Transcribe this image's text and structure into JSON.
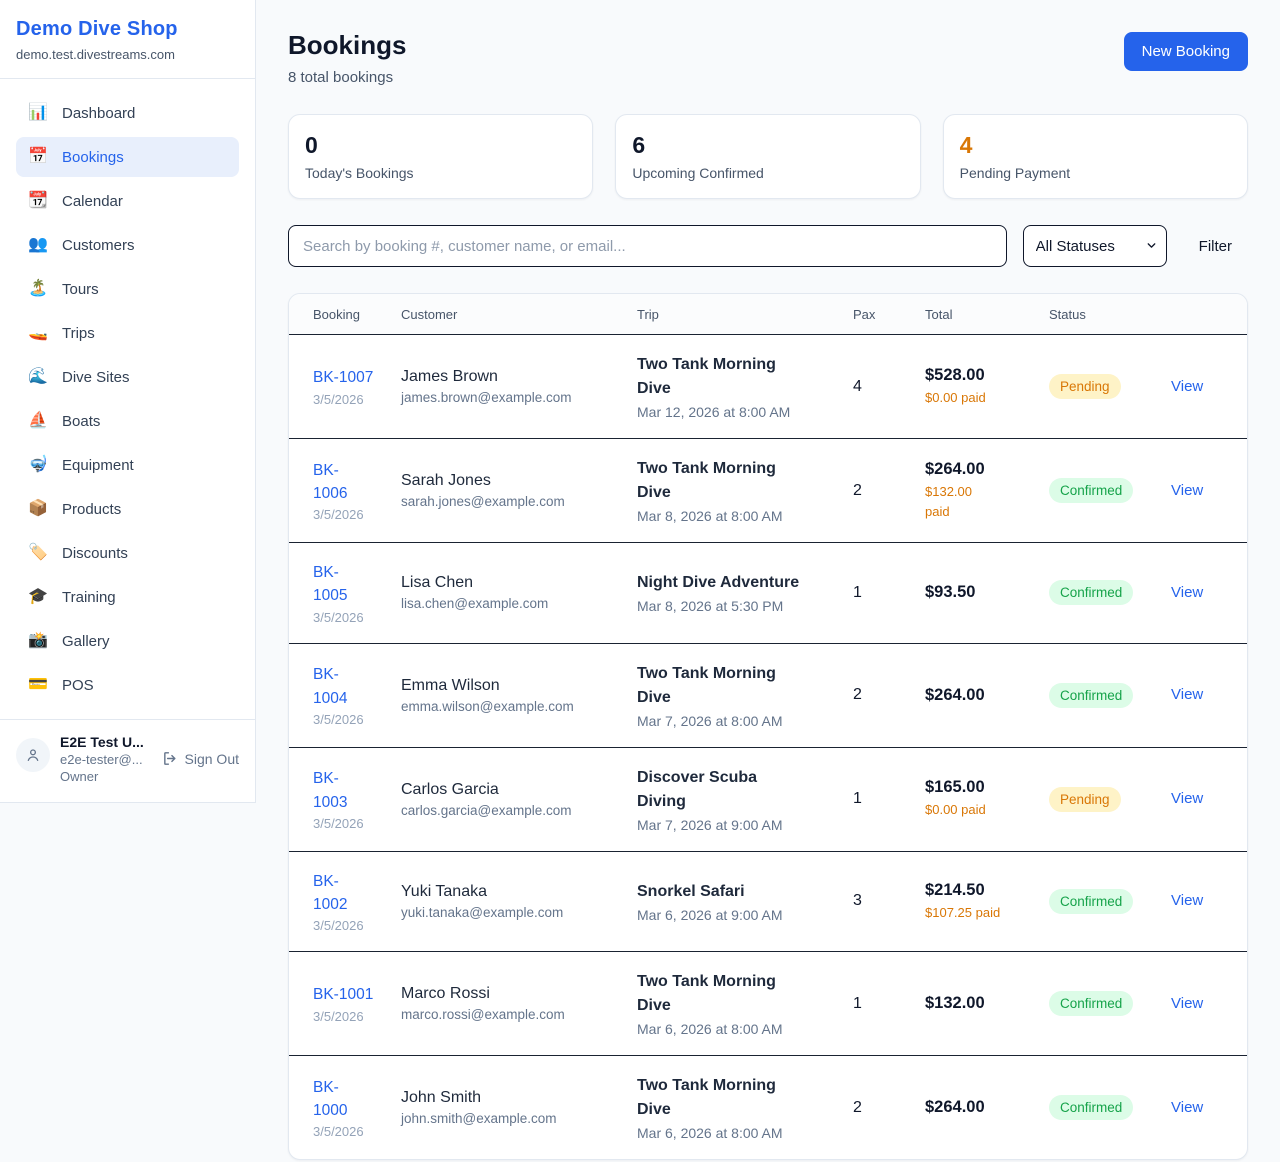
{
  "colors": {
    "accent_blue": "#2563eb",
    "pending_text": "#d97706",
    "pending_bg": "#fef3c7",
    "confirmed_text": "#16a34a",
    "confirmed_bg": "#dcfce7",
    "dark_text": "#0f172a"
  },
  "sidebar": {
    "brand": "Demo Dive Shop",
    "domain": "demo.test.divestreams.com",
    "items": [
      {
        "label": "Dashboard",
        "icon_name": "bar-chart-icon",
        "glyph": "📊",
        "active": false
      },
      {
        "label": "Bookings",
        "icon_name": "calendar-date-icon",
        "glyph": "📅",
        "active": true
      },
      {
        "label": "Calendar",
        "icon_name": "tear-calendar-icon",
        "glyph": "📆",
        "active": false
      },
      {
        "label": "Customers",
        "icon_name": "people-icon",
        "glyph": "👥",
        "active": false
      },
      {
        "label": "Tours",
        "icon_name": "island-icon",
        "glyph": "🏝️",
        "active": false
      },
      {
        "label": "Trips",
        "icon_name": "speedboat-icon",
        "glyph": "🚤",
        "active": false
      },
      {
        "label": "Dive Sites",
        "icon_name": "wave-icon",
        "glyph": "🌊",
        "active": false
      },
      {
        "label": "Boats",
        "icon_name": "sailboat-icon",
        "glyph": "⛵",
        "active": false
      },
      {
        "label": "Equipment",
        "icon_name": "diving-mask-icon",
        "glyph": "🤿",
        "active": false
      },
      {
        "label": "Products",
        "icon_name": "package-icon",
        "glyph": "📦",
        "active": false
      },
      {
        "label": "Discounts",
        "icon_name": "label-tag-icon",
        "glyph": "🏷️",
        "active": false
      },
      {
        "label": "Training",
        "icon_name": "graduation-cap-icon",
        "glyph": "🎓",
        "active": false
      },
      {
        "label": "Gallery",
        "icon_name": "camera-flash-icon",
        "glyph": "📸",
        "active": false
      },
      {
        "label": "POS",
        "icon_name": "credit-card-icon",
        "glyph": "💳",
        "active": false
      }
    ],
    "user": {
      "name": "E2E Test U...",
      "email": "e2e-tester@...",
      "role": "Owner",
      "signout_label": "Sign Out"
    }
  },
  "header": {
    "title": "Bookings",
    "subtitle": "8 total bookings",
    "new_booking_label": "New Booking"
  },
  "stats": [
    {
      "value": "0",
      "label": "Today's Bookings",
      "value_color": "#0f172a"
    },
    {
      "value": "6",
      "label": "Upcoming Confirmed",
      "value_color": "#0f172a"
    },
    {
      "value": "4",
      "label": "Pending Payment",
      "value_color": "#d97706"
    }
  ],
  "filters": {
    "search_placeholder": "Search by booking #, customer name, or email...",
    "status_selected": "All Statuses",
    "filter_label": "Filter"
  },
  "table": {
    "columns": [
      "Booking",
      "Customer",
      "Trip",
      "Pax",
      "Total",
      "Status"
    ],
    "view_label": "View",
    "rows": [
      {
        "id": "BK-1007",
        "date": "3/5/2026",
        "customer": "James Brown",
        "email": "james.brown@example.com",
        "trip": "Two Tank Morning\nDive",
        "trip_datetime": "Mar 12, 2026 at 8:00 AM",
        "pax": "4",
        "total": "$528.00",
        "paid": "$0.00 paid",
        "status": "Pending"
      },
      {
        "id": "BK-\n1006",
        "date": "3/5/2026",
        "customer": "Sarah Jones",
        "email": "sarah.jones@example.com",
        "trip": "Two Tank Morning\nDive",
        "trip_datetime": "Mar 8, 2026 at 8:00 AM",
        "pax": "2",
        "total": "$264.00",
        "paid": "$132.00\npaid",
        "status": "Confirmed"
      },
      {
        "id": "BK-\n1005",
        "date": "3/5/2026",
        "customer": "Lisa Chen",
        "email": "lisa.chen@example.com",
        "trip": "Night Dive Adventure",
        "trip_datetime": "Mar 8, 2026 at 5:30 PM",
        "pax": "1",
        "total": "$93.50",
        "paid": "",
        "status": "Confirmed"
      },
      {
        "id": "BK-\n1004",
        "date": "3/5/2026",
        "customer": "Emma Wilson",
        "email": "emma.wilson@example.com",
        "trip": "Two Tank Morning\nDive",
        "trip_datetime": "Mar 7, 2026 at 8:00 AM",
        "pax": "2",
        "total": "$264.00",
        "paid": "",
        "status": "Confirmed"
      },
      {
        "id": "BK-\n1003",
        "date": "3/5/2026",
        "customer": "Carlos Garcia",
        "email": "carlos.garcia@example.com",
        "trip": "Discover Scuba\nDiving",
        "trip_datetime": "Mar 7, 2026 at 9:00 AM",
        "pax": "1",
        "total": "$165.00",
        "paid": "$0.00 paid",
        "status": "Pending"
      },
      {
        "id": "BK-\n1002",
        "date": "3/5/2026",
        "customer": "Yuki Tanaka",
        "email": "yuki.tanaka@example.com",
        "trip": "Snorkel Safari",
        "trip_datetime": "Mar 6, 2026 at 9:00 AM",
        "pax": "3",
        "total": "$214.50",
        "paid": "$107.25 paid",
        "status": "Confirmed"
      },
      {
        "id": "BK-1001",
        "date": "3/5/2026",
        "customer": "Marco Rossi",
        "email": "marco.rossi@example.com",
        "trip": "Two Tank Morning\nDive",
        "trip_datetime": "Mar 6, 2026 at 8:00 AM",
        "pax": "1",
        "total": "$132.00",
        "paid": "",
        "status": "Confirmed"
      },
      {
        "id": "BK-\n1000",
        "date": "3/5/2026",
        "customer": "John Smith",
        "email": "john.smith@example.com",
        "trip": "Two Tank Morning\nDive",
        "trip_datetime": "Mar 6, 2026 at 8:00 AM",
        "pax": "2",
        "total": "$264.00",
        "paid": "",
        "status": "Confirmed"
      }
    ]
  }
}
